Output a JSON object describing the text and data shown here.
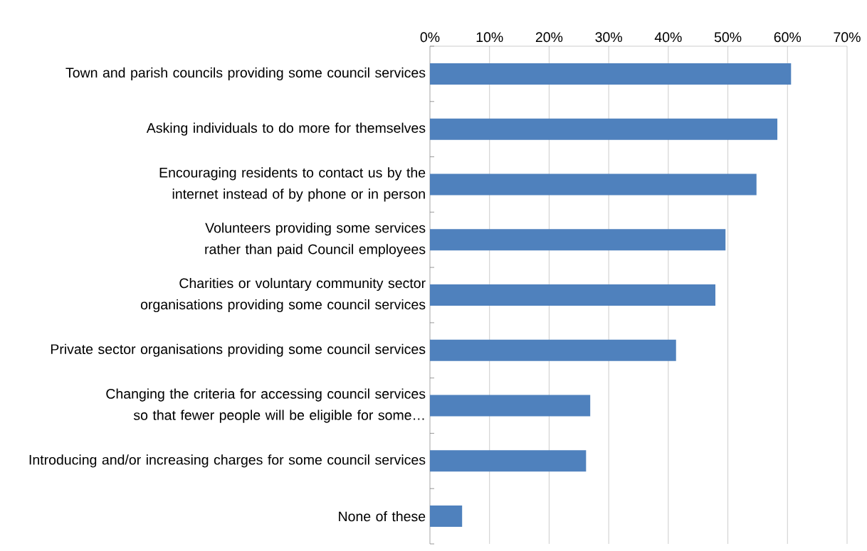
{
  "chart_data": {
    "type": "bar",
    "orientation": "horizontal",
    "categories": [
      "Town and parish councils providing some council services",
      "Asking individuals to do more for themselves",
      "Encouraging residents to contact us by the internet instead of by phone or in person",
      "Volunteers providing some services rather than paid Council employees",
      "Charities or voluntary community sector organisations providing some council services",
      "Private sector organisations providing some council services",
      "Changing the criteria for accessing council services so that fewer people will be eligible for some…",
      "Introducing and/or increasing charges for some council services",
      "None of these"
    ],
    "values": [
      60.6,
      58.3,
      54.8,
      49.6,
      47.9,
      41.3,
      26.9,
      26.2,
      5.4
    ],
    "color": "#4f81bd",
    "xlim": [
      0,
      70
    ],
    "xticks": [
      {
        "value": 0,
        "label": "0%"
      },
      {
        "value": 10,
        "label": "10%"
      },
      {
        "value": 20,
        "label": "20%"
      },
      {
        "value": 30,
        "label": "30%"
      },
      {
        "value": 40,
        "label": "40%"
      },
      {
        "value": 50,
        "label": "50%"
      },
      {
        "value": 60,
        "label": "60%"
      },
      {
        "value": 70,
        "label": "70%"
      }
    ],
    "grid": "x"
  }
}
